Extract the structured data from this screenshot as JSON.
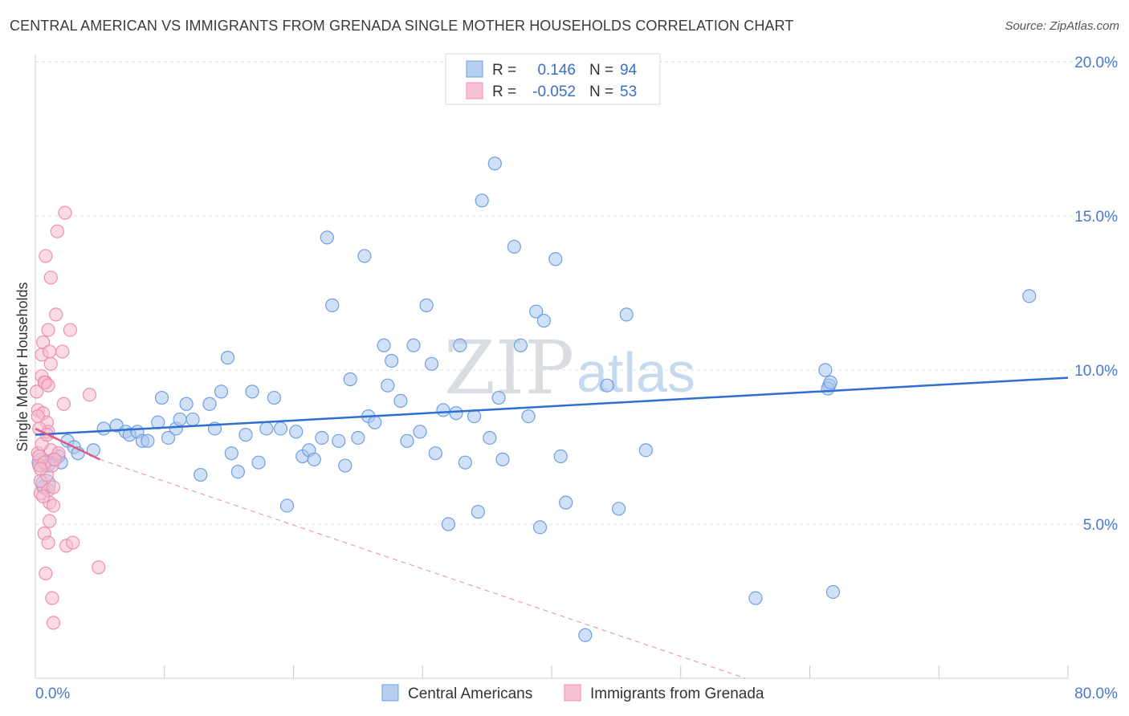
{
  "chart_data": {
    "type": "scatter",
    "title": "CENTRAL AMERICAN VS IMMIGRANTS FROM GRENADA SINGLE MOTHER HOUSEHOLDS CORRELATION CHART",
    "source": "Source: ZipAtlas.com",
    "xlabel": "",
    "ylabel": "Single Mother Households",
    "xlim": [
      0,
      80
    ],
    "ylim": [
      0,
      20
    ],
    "x_tick_labels": [
      {
        "value": 0,
        "label": "0.0%"
      },
      {
        "value": 80,
        "label": "80.0%"
      }
    ],
    "y_tick_labels": [
      {
        "value": 5,
        "label": "5.0%"
      },
      {
        "value": 10,
        "label": "10.0%"
      },
      {
        "value": 15,
        "label": "15.0%"
      },
      {
        "value": 20,
        "label": "20.0%"
      }
    ],
    "legend_stats": [
      {
        "r_label": "R =",
        "r_value": "0.146",
        "n_label": "N =",
        "n_value": "94"
      },
      {
        "r_label": "R =",
        "r_value": "-0.052",
        "n_label": "N =",
        "n_value": "53"
      }
    ],
    "watermark": {
      "zip": "ZIP",
      "atlas": "atlas"
    },
    "series": [
      {
        "name": "Central Americans",
        "color": "#6f9fe0",
        "fill": "#a9c6ee",
        "trend": {
          "x": [
            0,
            80
          ],
          "y": [
            7.9,
            9.75
          ],
          "style": "solid",
          "color": "#2e6fd0"
        },
        "points": [
          [
            0.6,
            6.2
          ],
          [
            1.0,
            6.9
          ],
          [
            1.4,
            7.1
          ],
          [
            1.8,
            7.2
          ],
          [
            2.0,
            7.0
          ],
          [
            2.5,
            7.7
          ],
          [
            3.0,
            7.5
          ],
          [
            3.3,
            7.3
          ],
          [
            4.5,
            7.4
          ],
          [
            5.3,
            8.1
          ],
          [
            6.3,
            8.2
          ],
          [
            7.0,
            8.0
          ],
          [
            7.3,
            7.9
          ],
          [
            7.9,
            8.0
          ],
          [
            8.3,
            7.7
          ],
          [
            8.7,
            7.7
          ],
          [
            9.5,
            8.3
          ],
          [
            9.8,
            9.1
          ],
          [
            10.3,
            7.8
          ],
          [
            10.9,
            8.1
          ],
          [
            11.2,
            8.4
          ],
          [
            11.7,
            8.9
          ],
          [
            12.2,
            8.4
          ],
          [
            12.8,
            6.6
          ],
          [
            13.5,
            8.9
          ],
          [
            13.9,
            8.1
          ],
          [
            14.4,
            9.3
          ],
          [
            14.9,
            10.4
          ],
          [
            15.2,
            7.3
          ],
          [
            15.7,
            6.7
          ],
          [
            16.3,
            7.9
          ],
          [
            16.8,
            9.3
          ],
          [
            17.3,
            7.0
          ],
          [
            17.9,
            8.1
          ],
          [
            18.5,
            9.1
          ],
          [
            19.0,
            8.1
          ],
          [
            19.5,
            5.6
          ],
          [
            20.2,
            8.0
          ],
          [
            20.7,
            7.2
          ],
          [
            21.2,
            7.4
          ],
          [
            21.6,
            7.1
          ],
          [
            22.2,
            7.8
          ],
          [
            22.6,
            14.3
          ],
          [
            23.0,
            12.1
          ],
          [
            23.5,
            7.7
          ],
          [
            24.0,
            6.9
          ],
          [
            24.4,
            9.7
          ],
          [
            25.0,
            7.8
          ],
          [
            25.5,
            13.7
          ],
          [
            25.8,
            8.5
          ],
          [
            26.3,
            8.3
          ],
          [
            27.0,
            10.8
          ],
          [
            27.3,
            9.5
          ],
          [
            27.6,
            10.3
          ],
          [
            28.3,
            9.0
          ],
          [
            28.8,
            7.7
          ],
          [
            29.3,
            10.8
          ],
          [
            29.8,
            8.0
          ],
          [
            30.3,
            12.1
          ],
          [
            30.7,
            10.2
          ],
          [
            31.0,
            7.3
          ],
          [
            31.6,
            8.7
          ],
          [
            32.0,
            5.0
          ],
          [
            32.6,
            8.6
          ],
          [
            32.9,
            10.8
          ],
          [
            33.3,
            7.0
          ],
          [
            34.0,
            8.5
          ],
          [
            34.3,
            5.4
          ],
          [
            34.6,
            15.5
          ],
          [
            35.2,
            7.8
          ],
          [
            35.6,
            16.7
          ],
          [
            35.9,
            9.1
          ],
          [
            36.2,
            7.1
          ],
          [
            37.1,
            14.0
          ],
          [
            37.6,
            10.8
          ],
          [
            38.2,
            8.5
          ],
          [
            38.8,
            11.9
          ],
          [
            39.1,
            4.9
          ],
          [
            39.4,
            11.6
          ],
          [
            40.3,
            13.6
          ],
          [
            40.7,
            7.2
          ],
          [
            41.1,
            5.7
          ],
          [
            42.6,
            1.4
          ],
          [
            44.3,
            9.5
          ],
          [
            45.2,
            5.5
          ],
          [
            45.8,
            11.8
          ],
          [
            47.3,
            7.4
          ],
          [
            55.8,
            2.6
          ],
          [
            61.2,
            10.0
          ],
          [
            61.5,
            9.5
          ],
          [
            61.4,
            9.4
          ],
          [
            61.6,
            9.6
          ],
          [
            61.8,
            2.8
          ],
          [
            77.0,
            12.4
          ]
        ],
        "big_points": [
          [
            0.5,
            7.0
          ],
          [
            0.8,
            6.3
          ]
        ]
      },
      {
        "name": "Immigrants from Grenada",
        "color": "#ee8fad",
        "fill": "#f6bccd",
        "trend": {
          "x": [
            0,
            5
          ],
          "y": [
            8.1,
            7.1
          ],
          "style": "solid",
          "color": "#e05a86",
          "ext_x": [
            5,
            55
          ],
          "ext_y": [
            7.1,
            0.0
          ],
          "ext_style": "dashed"
        },
        "points": [
          [
            0.1,
            9.3
          ],
          [
            0.2,
            8.7
          ],
          [
            0.2,
            7.3
          ],
          [
            0.3,
            7.2
          ],
          [
            0.3,
            6.9
          ],
          [
            0.4,
            6.4
          ],
          [
            0.4,
            6.0
          ],
          [
            0.5,
            10.5
          ],
          [
            0.5,
            9.8
          ],
          [
            0.6,
            10.9
          ],
          [
            0.6,
            8.6
          ],
          [
            0.7,
            7.0
          ],
          [
            0.7,
            4.7
          ],
          [
            0.8,
            13.7
          ],
          [
            0.8,
            9.6
          ],
          [
            0.8,
            3.4
          ],
          [
            0.9,
            8.3
          ],
          [
            0.9,
            6.6
          ],
          [
            1.0,
            11.3
          ],
          [
            1.0,
            8.0
          ],
          [
            1.0,
            6.1
          ],
          [
            1.0,
            4.4
          ],
          [
            1.1,
            10.6
          ],
          [
            1.1,
            5.7
          ],
          [
            1.1,
            5.1
          ],
          [
            1.2,
            13.0
          ],
          [
            1.2,
            10.2
          ],
          [
            1.2,
            7.4
          ],
          [
            1.3,
            6.9
          ],
          [
            1.3,
            2.6
          ],
          [
            1.4,
            6.2
          ],
          [
            1.4,
            5.6
          ],
          [
            1.4,
            1.8
          ],
          [
            1.6,
            11.8
          ],
          [
            1.7,
            14.5
          ],
          [
            1.8,
            7.3
          ],
          [
            2.1,
            10.6
          ],
          [
            2.2,
            8.9
          ],
          [
            2.3,
            15.1
          ],
          [
            2.4,
            4.3
          ],
          [
            2.7,
            11.3
          ],
          [
            2.9,
            4.4
          ],
          [
            4.2,
            9.2
          ],
          [
            4.9,
            3.6
          ],
          [
            0.3,
            8.1
          ],
          [
            0.5,
            7.6
          ],
          [
            0.6,
            5.9
          ],
          [
            0.4,
            6.8
          ],
          [
            0.7,
            9.6
          ],
          [
            0.9,
            7.9
          ],
          [
            1.5,
            7.1
          ],
          [
            0.2,
            8.5
          ],
          [
            1.0,
            9.5
          ]
        ],
        "big_points": []
      }
    ]
  }
}
